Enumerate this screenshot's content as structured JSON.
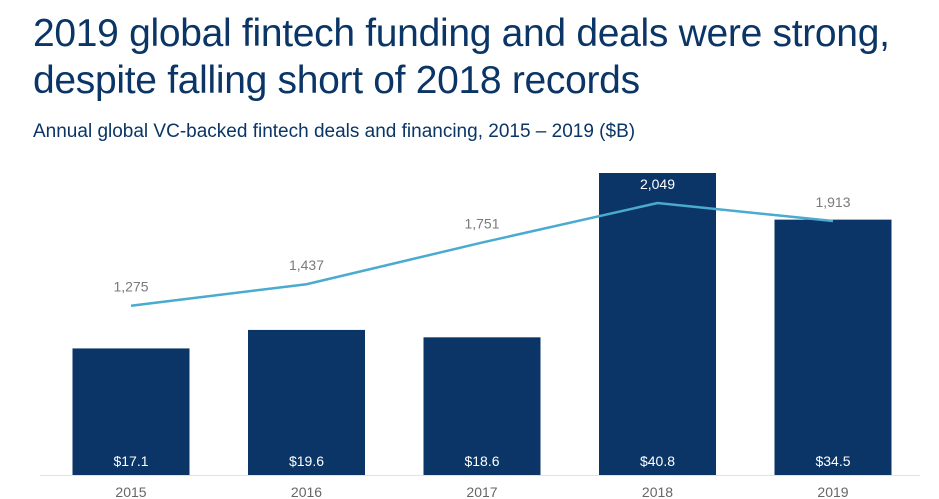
{
  "title": "2019 global fintech funding and deals were strong, despite falling short of 2018 records",
  "subtitle": "Annual global VC-backed fintech deals and financing, 2015 – 2019 ($B)",
  "chart_data": {
    "type": "bar",
    "categories": [
      "2015",
      "2016",
      "2017",
      "2018",
      "2019"
    ],
    "series": [
      {
        "type": "bar",
        "values": [
          17.1,
          19.6,
          18.6,
          40.8,
          34.5
        ],
        "labels": [
          "$17.1",
          "$19.6",
          "$18.6",
          "$40.8",
          "$34.5"
        ],
        "color": "#0a3566"
      },
      {
        "type": "line",
        "values": [
          1275,
          1437,
          1751,
          2049,
          1913
        ],
        "labels": [
          "1,275",
          "1,437",
          "1,751",
          "2,049",
          "1,913"
        ],
        "color": "#4aaad0"
      }
    ],
    "bar_ylim": [
      0,
      40.8
    ],
    "line_ylim": [
      0,
      2049
    ],
    "grid": false,
    "legend": "none"
  }
}
